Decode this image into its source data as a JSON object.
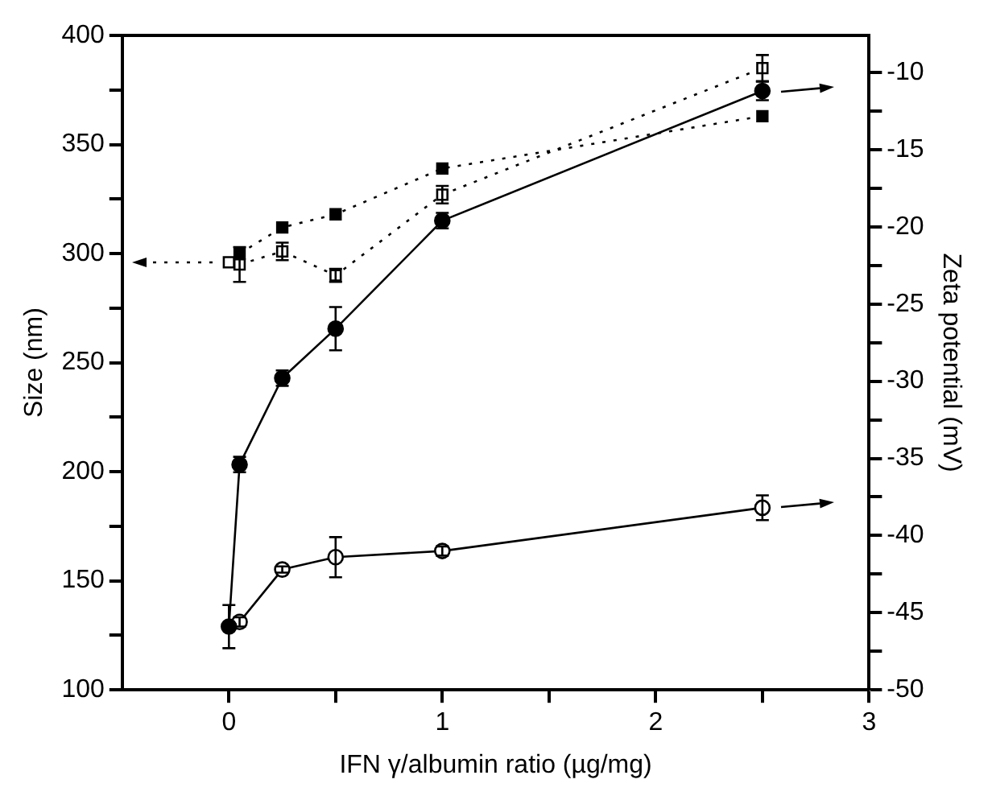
{
  "chart_data": {
    "type": "line",
    "xlabel": "IFN γ/albumin ratio (µg/mg)",
    "ylabel": "Size (nm)",
    "y2label": "Zeta potential (mV)",
    "series": [
      {
        "color": "#000000",
        "marker": "square",
        "line_style": "dotted",
        "x": [
          0.05,
          0.25,
          0.5,
          1,
          2.5
        ],
        "values": [
          300,
          312,
          318,
          339,
          363
        ]
      },
      {
        "color": "#ffffff",
        "marker": "square",
        "line_style": "dotted",
        "x": [
          0,
          0.05,
          0.25,
          0.5,
          1,
          2.5
        ],
        "values": [
          296,
          295,
          301,
          290,
          327,
          385
        ],
        "errors": [
          null,
          8,
          4,
          3,
          4,
          6
        ]
      },
      {
        "color": "#000000",
        "marker": "circle",
        "line_style": "solid",
        "axis": "y2",
        "x": [
          0,
          0.05,
          0.25,
          0.5,
          1,
          2.5
        ],
        "values": [
          -45.9,
          -35.4,
          -29.8,
          -26.6,
          -19.6,
          -11.2
        ],
        "errors": [
          1.4,
          0.5,
          0.5,
          1.4,
          0.5,
          0.6
        ]
      },
      {
        "color": "#ffffff",
        "marker": "circle",
        "line_style": "solid",
        "axis": "y2",
        "x": [
          0.05,
          0.25,
          0.5,
          1,
          2.5
        ],
        "values": [
          -45.6,
          -42.2,
          -41.4,
          -41.0,
          -38.2
        ],
        "errors": [
          0.3,
          0.2,
          1.3,
          0.3,
          0.8
        ]
      }
    ],
    "xlim": [
      -0.5,
      3
    ],
    "xticks": [
      0,
      {
        "value": 0.5,
        "label": null
      },
      1,
      {
        "value": 1.5,
        "label": null
      },
      2,
      {
        "value": 2.5,
        "label": null
      },
      3
    ],
    "ylim": [
      100,
      400
    ],
    "yticks": [
      100,
      {
        "value": 125,
        "label": null
      },
      150,
      {
        "value": 175,
        "label": null
      },
      200,
      {
        "value": 225,
        "label": null
      },
      250,
      {
        "value": 275,
        "label": null
      },
      300,
      {
        "value": 325,
        "label": null
      },
      350,
      {
        "value": 375,
        "label": null
      },
      400
    ],
    "y2lim": [
      -50,
      -7.6
    ],
    "y2ticks": [
      -50,
      {
        "value": -47.5,
        "label": null
      },
      -45,
      {
        "value": -42.5,
        "label": null
      },
      -40,
      {
        "value": -37.5,
        "label": null
      },
      -35,
      {
        "value": -32.5,
        "label": null
      },
      -30,
      {
        "value": -27.5,
        "label": null
      },
      -25,
      {
        "value": -22.5,
        "label": null
      },
      -20,
      {
        "value": -17.5,
        "label": null
      },
      -15,
      {
        "value": -12.5,
        "label": null
      },
      -10
    ],
    "grid": false,
    "legend": false
  }
}
